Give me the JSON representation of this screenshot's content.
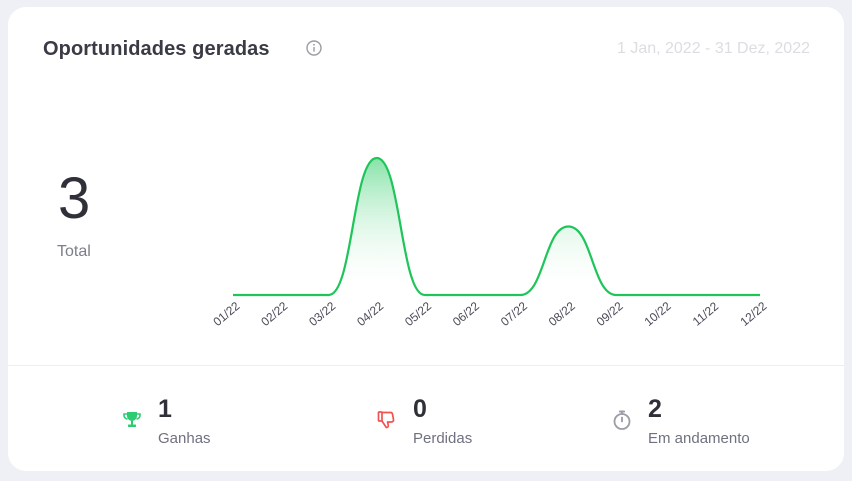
{
  "card": {
    "title": "Oportunidades geradas",
    "date_range": "1 Jan, 2022 - 31 Dez, 2022"
  },
  "total": {
    "value": "3",
    "label": "Total"
  },
  "chart_data": {
    "type": "area",
    "x": [
      "01/22",
      "02/22",
      "03/22",
      "04/22",
      "05/22",
      "06/22",
      "07/22",
      "08/22",
      "09/22",
      "10/22",
      "11/22",
      "12/22"
    ],
    "series": [
      {
        "values": [
          0,
          0,
          0,
          2,
          0,
          0,
          0,
          1,
          0,
          0,
          0,
          0
        ]
      }
    ],
    "ylim": [
      0,
      2
    ],
    "grid": false,
    "colors": {
      "line": "#1fc55a",
      "fill_top": "#5fd98b",
      "fill_bottom": "#ffffff"
    }
  },
  "stats": [
    {
      "value": "1",
      "label": "Ganhas",
      "icon": "trophy-icon",
      "color": "#2ecc71"
    },
    {
      "value": "0",
      "label": "Perdidas",
      "icon": "thumbs-down-icon",
      "color": "#ef5350"
    },
    {
      "value": "2",
      "label": "Em andamento",
      "icon": "stopwatch-icon",
      "color": "#9a9ca6"
    }
  ]
}
